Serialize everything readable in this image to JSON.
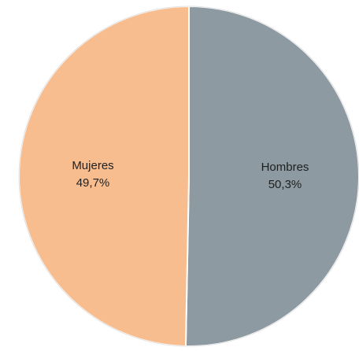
{
  "chart_data": {
    "type": "pie",
    "title": "",
    "slices": [
      {
        "label": "Hombres",
        "value": 50.3,
        "display": "50,3%",
        "color": "#8d9aa1"
      },
      {
        "label": "Mujeres",
        "value": 49.7,
        "display": "49,7%",
        "color": "#f8bd8f"
      }
    ],
    "start": "top",
    "direction": "clockwise",
    "legend": "none",
    "slice_border_color": "#ffffff"
  }
}
